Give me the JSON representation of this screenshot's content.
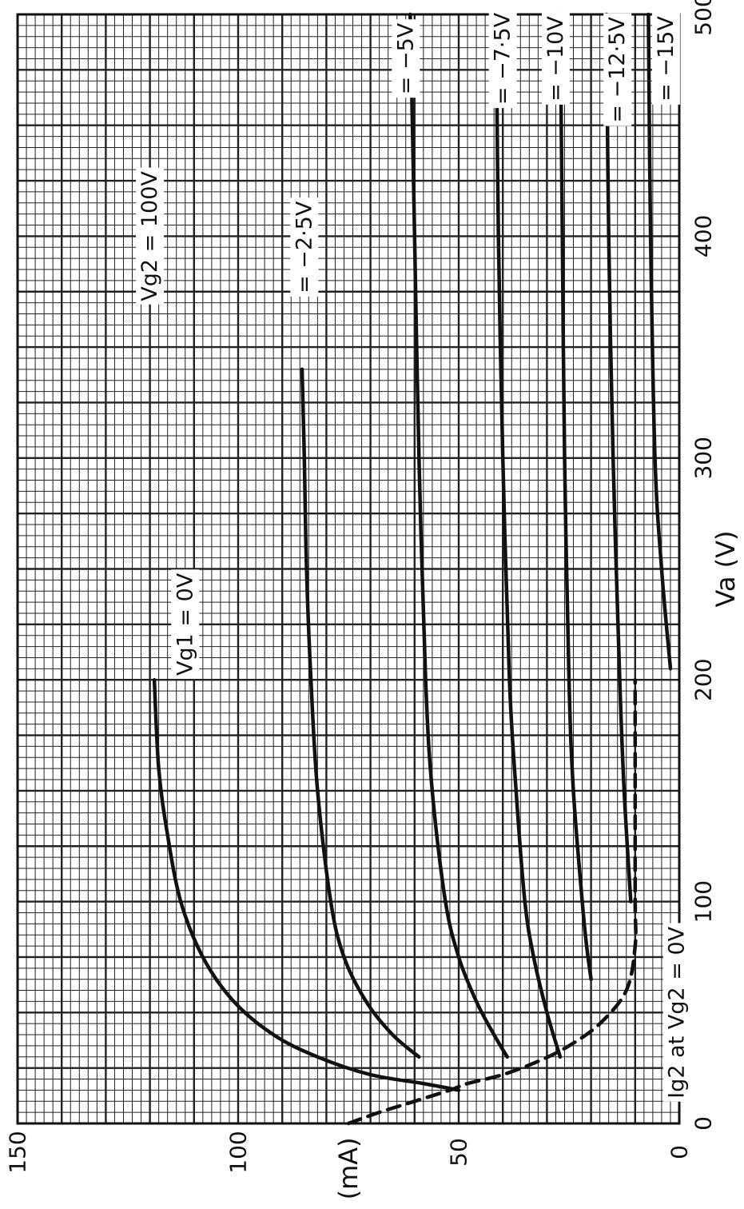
{
  "chart_data": {
    "type": "line",
    "title": "",
    "xlabel": "Va (V)",
    "ylabel": "Ia (mA)",
    "xlim": [
      0,
      500
    ],
    "ylim": [
      0,
      150
    ],
    "x_ticks": [
      "0",
      "100",
      "200",
      "300",
      "400",
      "500"
    ],
    "y_ticks": [
      "0",
      "50",
      "100",
      "150"
    ],
    "grid": true,
    "orientation": "rotated 90° counter-clockwise",
    "annotations": [
      {
        "text": "Vg2 = 100V",
        "x": 400,
        "y": 120
      }
    ],
    "series": [
      {
        "name": "Vg1 = 0V",
        "style": "solid",
        "label_at": {
          "x": 225,
          "y": 112
        },
        "x": [
          15,
          18,
          22,
          30,
          40,
          55,
          75,
          100,
          130,
          160,
          200
        ],
        "y": [
          50,
          58,
          70,
          82,
          92,
          101,
          108,
          113,
          116,
          118,
          119
        ]
      },
      {
        "name": "= −2·5V",
        "style": "solid",
        "label_at": {
          "x": 395,
          "y": 85
        },
        "x": [
          30,
          40,
          55,
          75,
          100,
          150,
          200,
          250,
          300,
          340
        ],
        "y": [
          59,
          65,
          71,
          76,
          79,
          82,
          83.5,
          84.5,
          85,
          85.5
        ]
      },
      {
        "name": "= −5V",
        "style": "solid",
        "label_at": {
          "x": 480,
          "y": 62
        },
        "x": [
          30,
          40,
          55,
          75,
          100,
          150,
          200,
          300,
          400,
          500
        ],
        "y": [
          39,
          42,
          46,
          50,
          53,
          56,
          57.5,
          59,
          60,
          61
        ]
      },
      {
        "name": "= −7·5V",
        "style": "solid",
        "label_at": {
          "x": 480,
          "y": 40
        },
        "x": [
          30,
          50,
          75,
          100,
          150,
          200,
          300,
          400,
          500
        ],
        "y": [
          27,
          30,
          33,
          35,
          37,
          38.5,
          40,
          41,
          41.5
        ]
      },
      {
        "name": "= −10V",
        "style": "solid",
        "label_at": {
          "x": 480,
          "y": 28
        },
        "x": [
          65,
          80,
          100,
          150,
          200,
          300,
          400,
          500
        ],
        "y": [
          20,
          21,
          22,
          24,
          25,
          26,
          26.5,
          27
        ]
      },
      {
        "name": "= −12·5V",
        "style": "solid",
        "label_at": {
          "x": 475,
          "y": 14
        },
        "x": [
          100,
          150,
          200,
          300,
          400,
          500
        ],
        "y": [
          11,
          12.5,
          13.5,
          15,
          16,
          16.5
        ]
      },
      {
        "name": "= −15V",
        "style": "solid",
        "label_at": {
          "x": 480,
          "y": 3
        },
        "x": [
          205,
          250,
          300,
          400,
          500
        ],
        "y": [
          2,
          4,
          5.5,
          6.5,
          7
        ]
      },
      {
        "name": "Ig2 at Vg2 = 0V",
        "style": "dashed",
        "label_at": {
          "x": 50,
          "y": 0.5
        },
        "x": [
          0,
          5,
          10,
          15,
          18,
          22,
          28,
          35,
          45,
          60,
          80,
          100,
          150,
          200
        ],
        "y": [
          75,
          68,
          60,
          52,
          48,
          40,
          32,
          25,
          18,
          12,
          10,
          10,
          10,
          10
        ]
      }
    ]
  }
}
